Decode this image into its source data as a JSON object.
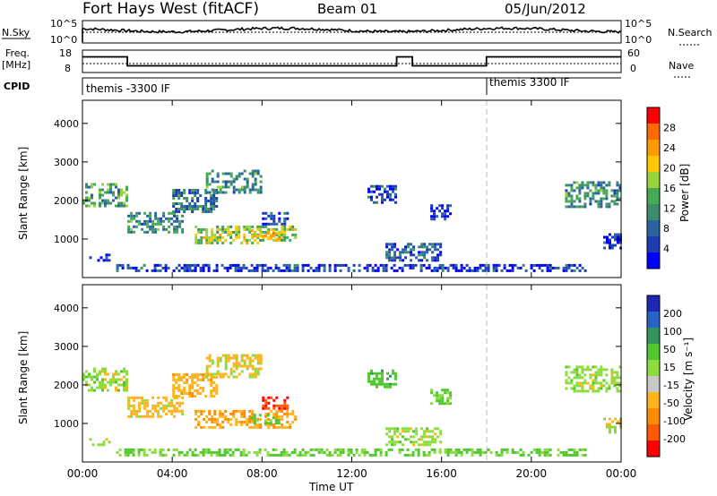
{
  "header": {
    "station": "Fort Hays West (fitACF)",
    "beam": "Beam 01",
    "date": "05/Jun/2012"
  },
  "strip": {
    "nsky_label": "N.Sky",
    "nsky_ticks": [
      "10^5",
      "10^0"
    ],
    "nsearch_label": "N.Search",
    "nsearch_ticks": [
      "10^5",
      "10^0"
    ],
    "freq_label_top": "Freq.",
    "freq_label_unit": "[MHz]",
    "freq_ticks": [
      "18",
      "8"
    ],
    "nave_label": "Nave",
    "nave_ticks": [
      "60",
      "0"
    ],
    "cpid_label": "CPID",
    "cpid_1": "themis -3300 IF",
    "cpid_2": "themis 3300 IF"
  },
  "power_panel": {
    "ylabel": "Slant Range [km]",
    "yticks": [
      "4000",
      "3000",
      "2000",
      "1000"
    ],
    "colorbar_label": "Power [dB]",
    "colorbar_ticks": [
      "28",
      "24",
      "20",
      "16",
      "12",
      "8",
      "4"
    ],
    "colors": [
      "#ff0000",
      "#ff6a00",
      "#ff9a00",
      "#ffc800",
      "#9ad23c",
      "#46aa55",
      "#3c8c6e",
      "#2864a0",
      "#1e3cb4",
      "#0000ff"
    ]
  },
  "velocity_panel": {
    "ylabel": "Slant Range [km]",
    "yticks": [
      "4000",
      "3000",
      "2000",
      "1000"
    ],
    "colorbar_label": "Velocity [m s⁻¹]",
    "colorbar_ticks": [
      "200",
      "100",
      "50",
      "15",
      "-15",
      "-50",
      "-100",
      "-200"
    ],
    "colors": [
      "#1e28b4",
      "#2864c8",
      "#32965a",
      "#50c82d",
      "#8cdc3c",
      "#c8c8c8",
      "#ffb41e",
      "#ff8c00",
      "#ff5a00",
      "#ff0000"
    ]
  },
  "xaxis": {
    "ticks": [
      "00:00",
      "04:00",
      "08:00",
      "12:00",
      "16:00",
      "20:00",
      "00:00"
    ],
    "label": "Time UT"
  },
  "chart_data": {
    "type": "heatmap",
    "x_range_hours": [
      0,
      24
    ],
    "y_range_km": [
      0,
      4600
    ],
    "freq_mhz_segments": [
      {
        "from": 0.0,
        "to": 2.0,
        "value": 15
      },
      {
        "from": 2.0,
        "to": 14.0,
        "value": 11
      },
      {
        "from": 14.0,
        "to": 14.7,
        "value": 15
      },
      {
        "from": 14.7,
        "to": 18.0,
        "value": 11
      },
      {
        "from": 18.0,
        "to": 24.0,
        "value": 15
      }
    ],
    "cpid_change_hour": 18.0,
    "echo_regions": [
      {
        "t0": 0.0,
        "t1": 2.0,
        "r0": 1850,
        "r1": 2450,
        "power": 14,
        "vel": 0
      },
      {
        "t0": 0.3,
        "t1": 1.2,
        "r0": 380,
        "r1": 620,
        "power": 6,
        "vel": 0
      },
      {
        "t0": 2.0,
        "t1": 4.5,
        "r0": 1150,
        "r1": 1700,
        "power": 12,
        "vel": -30
      },
      {
        "t0": 4.0,
        "t1": 6.0,
        "r0": 1700,
        "r1": 2300,
        "power": 10,
        "vel": -35
      },
      {
        "t0": 5.5,
        "t1": 8.0,
        "r0": 2200,
        "r1": 2800,
        "power": 12,
        "vel": -20
      },
      {
        "t0": 5.0,
        "t1": 9.5,
        "r0": 850,
        "r1": 1350,
        "power": 18,
        "vel": -45
      },
      {
        "t0": 7.5,
        "t1": 8.8,
        "r0": 1000,
        "r1": 1250,
        "power": 22,
        "vel": 30
      },
      {
        "t0": 8.0,
        "t1": 9.2,
        "r0": 1350,
        "r1": 1700,
        "power": 6,
        "vel": -200
      },
      {
        "t0": 12.7,
        "t1": 14.0,
        "r0": 1900,
        "r1": 2400,
        "power": 6,
        "vel": 40
      },
      {
        "t0": 15.5,
        "t1": 16.5,
        "r0": 1500,
        "r1": 1900,
        "power": 6,
        "vel": 20
      },
      {
        "t0": 13.5,
        "t1": 16.0,
        "r0": 400,
        "r1": 900,
        "power": 8,
        "vel": 0
      },
      {
        "t0": 1.5,
        "t1": 22.5,
        "r0": 150,
        "r1": 350,
        "power": 6,
        "vel": 20
      },
      {
        "t0": 21.5,
        "t1": 24.0,
        "r0": 1800,
        "r1": 2500,
        "power": 12,
        "vel": 0
      },
      {
        "t0": 23.2,
        "t1": 24.0,
        "r0": 750,
        "r1": 1150,
        "power": 6,
        "vel": -10
      }
    ]
  }
}
